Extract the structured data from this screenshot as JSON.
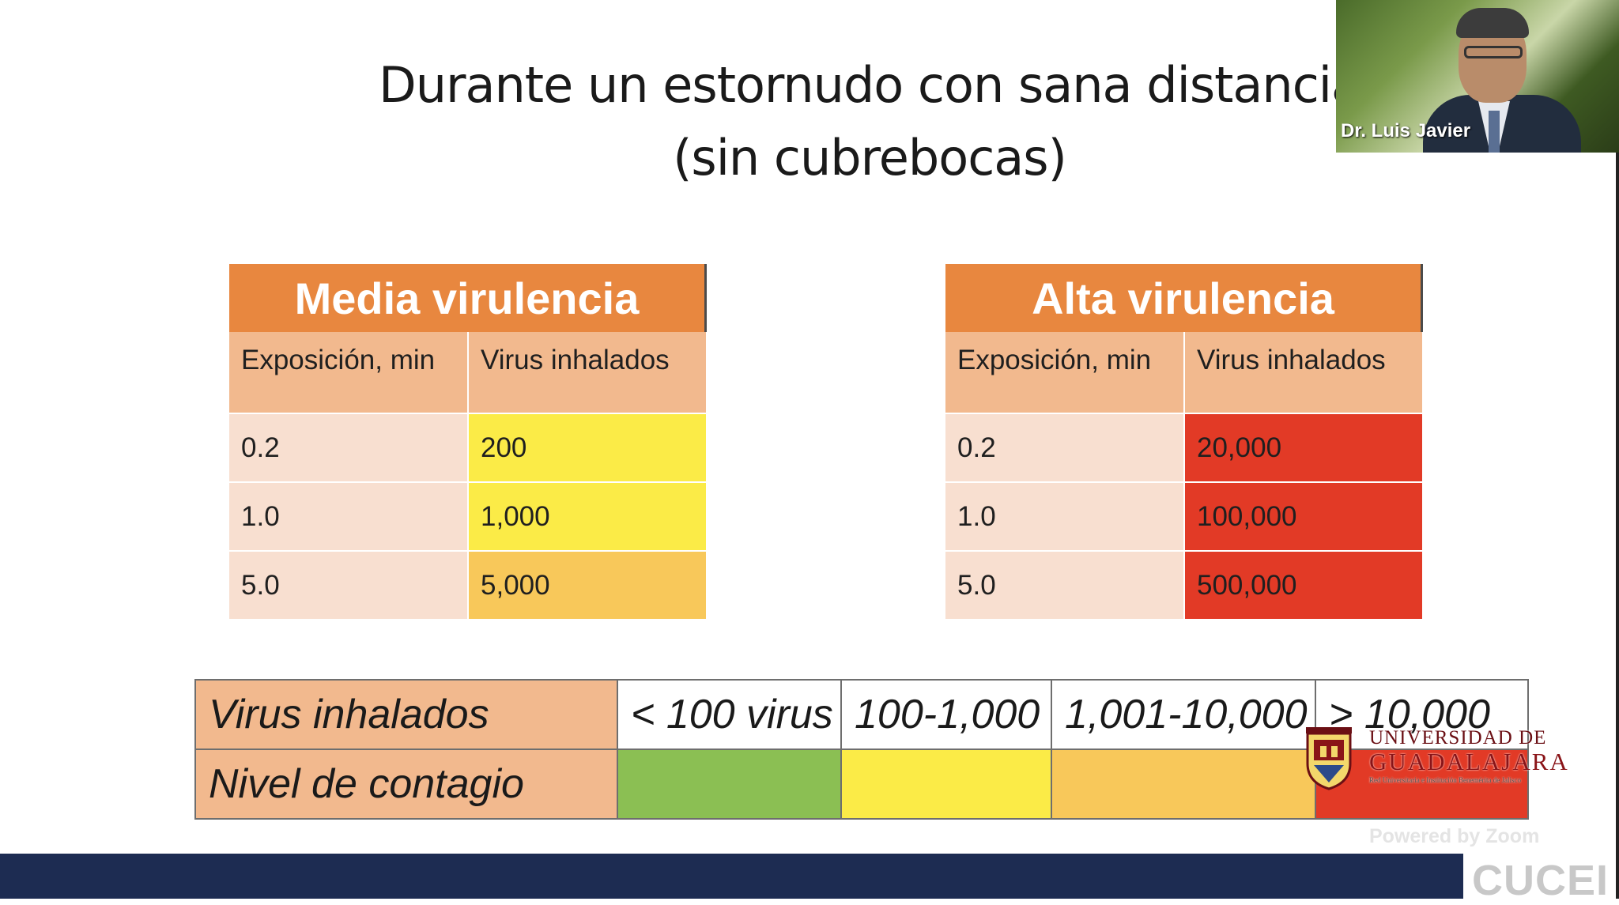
{
  "slide": {
    "title_line1": "Durante un estornudo con sana distancia",
    "title_line2": "(sin cubrebocas)"
  },
  "table_media": {
    "title": "Media virulencia",
    "col1": "Exposición, min",
    "col2": "Virus inhalados",
    "rows": [
      {
        "exp": "0.2",
        "virus": "200",
        "level": "yellow"
      },
      {
        "exp": "1.0",
        "virus": "1,000",
        "level": "yellow"
      },
      {
        "exp": "5.0",
        "virus": "5,000",
        "level": "amber"
      }
    ]
  },
  "table_alta": {
    "title": "Alta virulencia",
    "col1": "Exposición, min",
    "col2": "Virus inhalados",
    "rows": [
      {
        "exp": "0.2",
        "virus": "20,000",
        "level": "red"
      },
      {
        "exp": "1.0",
        "virus": "100,000",
        "level": "red"
      },
      {
        "exp": "5.0",
        "virus": "500,000",
        "level": "red"
      }
    ]
  },
  "legend": {
    "row1_label": "Virus inhalados",
    "row2_label": "Nivel de contagio",
    "ranges": [
      "< 100 virus",
      "100-1,000",
      "1,001-10,000",
      "> 10,000"
    ],
    "level_colors": [
      "#8bbf53",
      "#fbeb47",
      "#f8c85a",
      "#e23a26"
    ]
  },
  "webcam": {
    "participant_name": "Dr. Luis Javier"
  },
  "logo": {
    "line1": "UNIVERSIDAD DE",
    "line2": "GUADALAJARA",
    "tagline": "Red Universitaria e Institución Benemérita de Jalisco"
  },
  "watermark": {
    "powered_by": "Powered by Zoom",
    "department": "CUCEI"
  },
  "colors": {
    "header_orange": "#e8873f",
    "subheader_peach": "#f2b98e",
    "cell_light": "#f8dfd0",
    "footer_navy": "#1d2c52"
  }
}
